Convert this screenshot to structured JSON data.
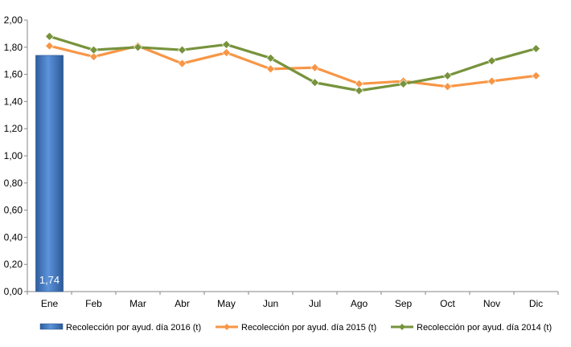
{
  "chart_data": {
    "type": "bar",
    "categories": [
      "Ene",
      "Feb",
      "Mar",
      "Abr",
      "May",
      "Jun",
      "Jul",
      "Ago",
      "Sep",
      "Oct",
      "Nov",
      "Dic"
    ],
    "ylim": [
      0,
      2.0
    ],
    "yticks": [
      "0,00",
      "0,20",
      "0,40",
      "0,60",
      "0,80",
      "1,00",
      "1,20",
      "1,40",
      "1,60",
      "1,80",
      "2,00"
    ],
    "grid": false,
    "legend_position": "bottom",
    "series": [
      {
        "name": "Recolección por ayud. día 2016 (t)",
        "type": "bar",
        "color": "#4f81bd",
        "values": [
          1.74,
          null,
          null,
          null,
          null,
          null,
          null,
          null,
          null,
          null,
          null,
          null
        ],
        "data_labels": [
          "1,74"
        ]
      },
      {
        "name": "Recolección por ayud. día 2015 (t)",
        "type": "line",
        "color": "#f79646",
        "values": [
          1.81,
          1.73,
          1.81,
          1.68,
          1.76,
          1.64,
          1.65,
          1.53,
          1.55,
          1.51,
          1.55,
          1.59
        ]
      },
      {
        "name": "Recolección por ayud. día 2014 (t)",
        "type": "line",
        "color": "#77933c",
        "values": [
          1.88,
          1.78,
          1.8,
          1.78,
          1.82,
          1.72,
          1.54,
          1.48,
          1.53,
          1.59,
          1.7,
          1.79
        ]
      }
    ]
  }
}
